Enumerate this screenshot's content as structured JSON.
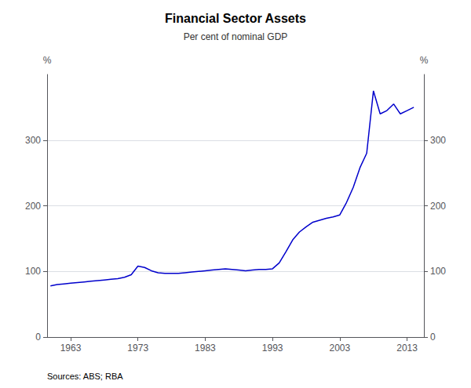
{
  "chart_data": {
    "type": "line",
    "title": "Financial Sector Assets",
    "subtitle": "Per cent of nominal GDP",
    "ylabel": "%",
    "y2label": "%",
    "source": "Sources: ABS; RBA",
    "color": "#0000CC",
    "grid": true,
    "xlim": [
      1959.5,
      2015.5
    ],
    "xticks": [
      1963,
      1973,
      1983,
      1993,
      2003,
      2013
    ],
    "ylim": [
      0,
      400
    ],
    "yticks": [
      0,
      100,
      200,
      300
    ],
    "y2lim": [
      0,
      400
    ],
    "y2ticks": [
      0,
      100,
      200,
      300
    ],
    "x": [
      1960,
      1961,
      1962,
      1963,
      1964,
      1965,
      1966,
      1967,
      1968,
      1969,
      1970,
      1971,
      1972,
      1973,
      1974,
      1975,
      1976,
      1977,
      1978,
      1979,
      1980,
      1981,
      1982,
      1983,
      1984,
      1985,
      1986,
      1987,
      1988,
      1989,
      1990,
      1991,
      1992,
      1993,
      1994,
      1995,
      1996,
      1997,
      1998,
      1999,
      2000,
      2001,
      2002,
      2003,
      2004,
      2005,
      2006,
      2007,
      2008,
      2009,
      2010,
      2011,
      2012,
      2013,
      2014
    ],
    "values": [
      78,
      80,
      81,
      82,
      83,
      84,
      85,
      86,
      87,
      88,
      89,
      91,
      95,
      108,
      106,
      101,
      98,
      97,
      97,
      97,
      98,
      99,
      100,
      101,
      102,
      103,
      104,
      103,
      102,
      101,
      102,
      103,
      103,
      104,
      113,
      130,
      148,
      160,
      168,
      175,
      178,
      181,
      183,
      186,
      205,
      228,
      258,
      280,
      375,
      340,
      345,
      355,
      340,
      345,
      350
    ]
  }
}
